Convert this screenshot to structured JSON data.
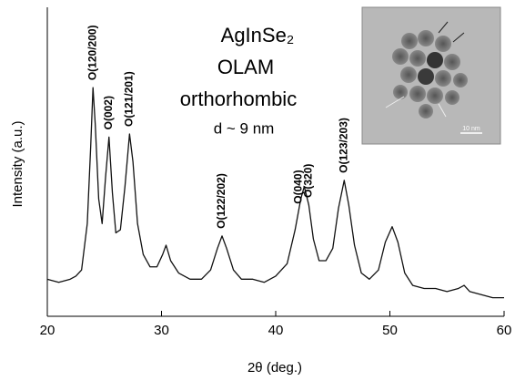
{
  "chart_data": {
    "type": "line",
    "xlabel": "2θ (deg.)",
    "ylabel": "Intensity (a.u.)",
    "xlim": [
      20,
      60
    ],
    "xticks": [
      20,
      30,
      40,
      50,
      60
    ],
    "ylim": [
      0,
      100
    ],
    "color": "#111111",
    "x": [
      20,
      21,
      22,
      22.5,
      23,
      23.5,
      23.8,
      24.0,
      24.2,
      24.5,
      24.8,
      25.1,
      25.4,
      25.7,
      26.0,
      26.4,
      26.8,
      27.2,
      27.5,
      27.9,
      28.4,
      29,
      29.6,
      30.1,
      30.4,
      30.8,
      31.5,
      32.5,
      33.5,
      34.3,
      34.9,
      35.3,
      35.7,
      36.3,
      37,
      38,
      39,
      40,
      41,
      41.7,
      42.2,
      42.5,
      42.9,
      43.3,
      43.8,
      44.4,
      45,
      45.5,
      46.0,
      46.4,
      46.9,
      47.5,
      48.2,
      49,
      49.6,
      50.2,
      50.7,
      51.3,
      52,
      53,
      54,
      55,
      56,
      56.5,
      57,
      58,
      59,
      60
    ],
    "values": [
      12,
      11,
      12,
      13,
      15,
      30,
      55,
      74,
      62,
      38,
      30,
      45,
      58,
      40,
      27,
      28,
      42,
      59,
      50,
      30,
      20,
      16,
      16,
      20,
      23,
      18,
      14,
      12,
      12,
      15,
      22,
      26,
      22,
      15,
      12,
      12,
      11,
      13,
      17,
      28,
      38,
      42,
      36,
      25,
      18,
      18,
      22,
      35,
      44,
      36,
      23,
      14,
      12,
      15,
      24,
      29,
      24,
      14,
      10,
      9,
      9,
      8,
      9,
      10,
      8,
      7,
      6,
      6
    ],
    "peak_labels": [
      {
        "label": "O(120/200)",
        "x": 24.0
      },
      {
        "label": "O(002)",
        "x": 25.4
      },
      {
        "label": "O(121/201)",
        "x": 27.2
      },
      {
        "label": "O(122/202)",
        "x": 35.3
      },
      {
        "label": "O(040)",
        "x": 42.0
      },
      {
        "label": "O(320)",
        "x": 42.9
      },
      {
        "label": "O(123/203)",
        "x": 46.0
      }
    ],
    "sample_texts": [
      "AgInSe₂",
      "OLAM",
      "orthorhombic",
      "d ~ 9 nm"
    ],
    "inset_scale_label": "10 nm"
  }
}
